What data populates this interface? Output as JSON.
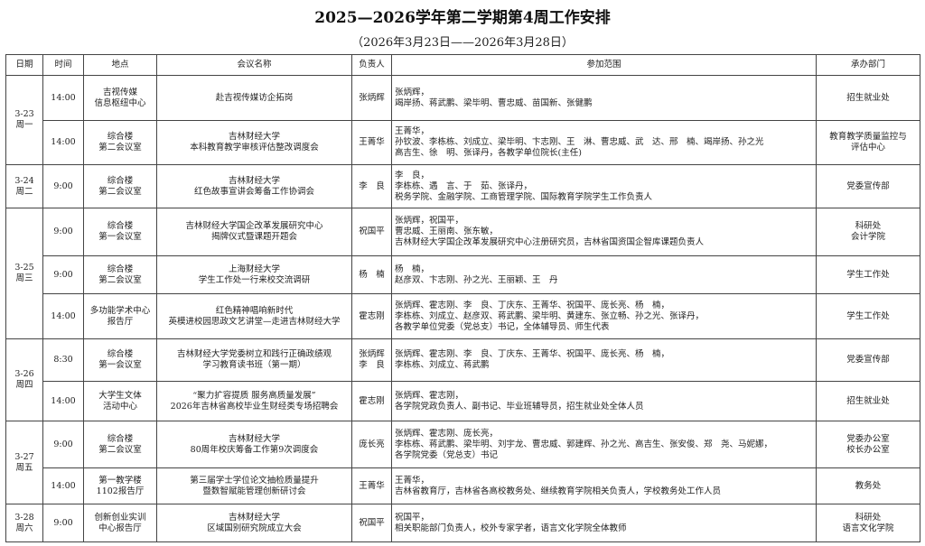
{
  "title": "2025—2026学年第二学期第4周工作安排",
  "subtitle": "（2026年3月23日——2026年3月28日）",
  "headers": [
    "日期",
    "时间",
    "地点",
    "会议名称",
    "负责人",
    "参加范围",
    "承办部门"
  ],
  "days": [
    {
      "date": [
        "3-23",
        "周一"
      ],
      "rows": [
        {
          "time": "14:00",
          "place": [
            "吉视传媒",
            "信息枢纽中心"
          ],
          "name": [
            "赴吉视传媒访企拓岗"
          ],
          "lead": [
            "张炳辉"
          ],
          "participants": [
            "张炳辉，",
            "竭岸扬、蒋武鹏、梁毕明、曹忠威、苗国新、张健鹏"
          ],
          "dept": [
            "招生就业处"
          ]
        },
        {
          "time": "14:00",
          "place": [
            "综合楼",
            "第二会议室"
          ],
          "name": [
            "吉林财经大学",
            "本科教育教学审核评估整改调度会"
          ],
          "lead": [
            "王菁华"
          ],
          "participants": [
            "王菁华，",
            "孙钦波、李栋栋、刘成立、梁毕明、卞志刚、王　淋、曹忠威、武　达、邢　楠、竭岸扬、孙之光",
            "高吉生、徐　明、张译丹，各教学单位院长(主任)"
          ],
          "dept": [
            "教育教学质量监控与",
            "评估中心"
          ]
        }
      ]
    },
    {
      "date": [
        "3-24",
        "周二"
      ],
      "rows": [
        {
          "time": "9:00",
          "place": [
            "综合楼",
            "第二会议室"
          ],
          "name": [
            "吉林财经大学",
            "红色故事宣讲会筹备工作协调会"
          ],
          "lead": [
            "李　良"
          ],
          "participants": [
            "李　良，",
            "李栋栋、遇　言、于　茹、张译丹，",
            "税务学院、金融学院、工商管理学院、国际教育学院学生工作负责人"
          ],
          "dept": [
            "党委宣传部"
          ]
        }
      ]
    },
    {
      "date": [
        "3-25",
        "周三"
      ],
      "rows": [
        {
          "time": "9:00",
          "place": [
            "综合楼",
            "第一会议室"
          ],
          "name": [
            "吉林财经大学国企改革发展研究中心",
            "揭牌仪式暨课题开题会"
          ],
          "lead": [
            "祝国平"
          ],
          "participants": [
            "张炳辉，祝国平，",
            "曹忠威、王丽南、张东敏，",
            "吉林财经大学国企改革发展研究中心注册研究员，吉林省国资国企智库课题负责人"
          ],
          "dept": [
            "科研处",
            "会计学院"
          ]
        },
        {
          "time": "9:00",
          "place": [
            "综合楼",
            "第二会议室"
          ],
          "name": [
            "上海财经大学",
            "学生工作处一行来校交流调研"
          ],
          "lead": [
            "杨　楠"
          ],
          "participants": [
            "杨　楠，",
            "赵彦双、卞志刚、孙之光、王丽颖、王　丹"
          ],
          "dept": [
            "学生工作处"
          ]
        },
        {
          "time": "14:00",
          "place": [
            "多功能学术中心",
            "报告厅"
          ],
          "name": [
            "红色精神唱响新时代",
            "英模进校园思政文艺讲堂—走进吉林财经大学"
          ],
          "lead": [
            "霍志刚"
          ],
          "participants": [
            "张炳辉、霍志刚、李　良、丁庆东、王菁华、祝国平、庞长亮、杨　楠，",
            "李栋栋、刘成立、赵彦双、蒋武鹏、梁毕明、黄建东、张立畅、孙之光、张译丹，",
            "各教学单位党委（党总支）书记，全体辅导员、师生代表"
          ],
          "dept": [
            "学生工作处"
          ]
        }
      ]
    },
    {
      "date": [
        "3-26",
        "周四"
      ],
      "rows": [
        {
          "time": "8:30",
          "place": [
            "综合楼",
            "第一会议室"
          ],
          "name": [
            "吉林财经大学党委树立和践行正确政绩观",
            "学习教育读书班（第一期）"
          ],
          "lead": [
            "张炳辉",
            "李　良"
          ],
          "participants": [
            "张炳辉、霍志刚、李　良、丁庆东、王菁华、祝国平、庞长亮、杨　楠，",
            "李栋栋、刘成立、蒋武鹏"
          ],
          "dept": [
            "党委宣传部"
          ]
        },
        {
          "time": "14:00",
          "place": [
            "大学生文体",
            "活动中心"
          ],
          "name": [
            "“聚力扩容提质 服务高质量发展”",
            "2026年吉林省高校毕业生财经类专场招聘会"
          ],
          "lead": [
            "霍志刚"
          ],
          "participants": [
            "张炳辉、霍志刚，",
            "各学院党政负责人、副书记、毕业班辅导员，招生就业处全体人员"
          ],
          "dept": [
            "招生就业处"
          ]
        }
      ]
    },
    {
      "date": [
        "3-27",
        "周五"
      ],
      "rows": [
        {
          "time": "9:00",
          "place": [
            "综合楼",
            "第二会议室"
          ],
          "name": [
            "吉林财经大学",
            "80周年校庆筹备工作第9次调度会"
          ],
          "lead": [
            "庞长亮"
          ],
          "participants": [
            "张炳辉、霍志刚、庞长亮，",
            "李栋栋、蒋武鹏、梁毕明、刘宇龙、曹忠威、郭建辉、孙之光、高吉生、张安俊、郑　尧、马妮娜，",
            "各学院党委（党总支）书记"
          ],
          "dept": [
            "党委办公室",
            "校长办公室"
          ]
        },
        {
          "time": "14:00",
          "place": [
            "第一教学楼",
            "1102报告厅"
          ],
          "name": [
            "第三届学士学位论文抽检质量提升",
            "暨数智赋能管理创新研讨会"
          ],
          "lead": [
            "王菁华"
          ],
          "participants": [
            "王菁华，",
            "吉林省教育厅，吉林省各高校教务处、继续教育学院相关负责人，学校教务处工作人员"
          ],
          "dept": [
            "教务处"
          ]
        }
      ]
    },
    {
      "date": [
        "3-28",
        "周六"
      ],
      "rows": [
        {
          "time": "9:00",
          "place": [
            "创新创业实训",
            "中心报告厅"
          ],
          "name": [
            "吉林财经大学",
            "区域国别研究院成立大会"
          ],
          "lead": [
            "祝国平"
          ],
          "participants": [
            "祝国平，",
            "相关职能部门负责人，校外专家学者，语言文化学院全体教师"
          ],
          "dept": [
            "科研处",
            "语言文化学院"
          ]
        }
      ]
    }
  ]
}
